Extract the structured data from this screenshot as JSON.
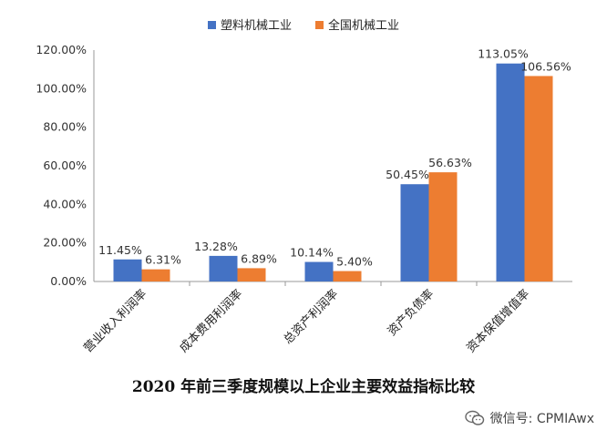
{
  "chart_data": {
    "type": "bar",
    "title": "",
    "caption": "2020 年前三季度规模以上企业主要效益指标比较",
    "xlabel": "",
    "ylabel": "",
    "ylim": [
      0,
      120
    ],
    "yticks": [
      "0.00%",
      "20.00%",
      "40.00%",
      "60.00%",
      "80.00%",
      "100.00%",
      "120.00%"
    ],
    "categories": [
      "营业收入利润率",
      "成本费用利润率",
      "总资产利润率",
      "资产负债率",
      "资本保值增值率"
    ],
    "series": [
      {
        "name": "塑料机械工业",
        "color": "#4472C4",
        "values": [
          11.45,
          13.28,
          10.14,
          50.45,
          113.05
        ],
        "labels": [
          "11.45%",
          "13.28%",
          "10.14%",
          "50.45%",
          "113.05%"
        ]
      },
      {
        "name": "全国机械工业",
        "color": "#ED7D31",
        "values": [
          6.31,
          6.89,
          5.4,
          56.63,
          106.56
        ],
        "labels": [
          "6.31%",
          "6.89%",
          "5.40%",
          "56.63%",
          "106.56%"
        ]
      }
    ],
    "grid": false,
    "legend_position": "top-center"
  },
  "watermark": {
    "text": "微信号: CPMIAwx",
    "icon": "wechat-icon"
  }
}
